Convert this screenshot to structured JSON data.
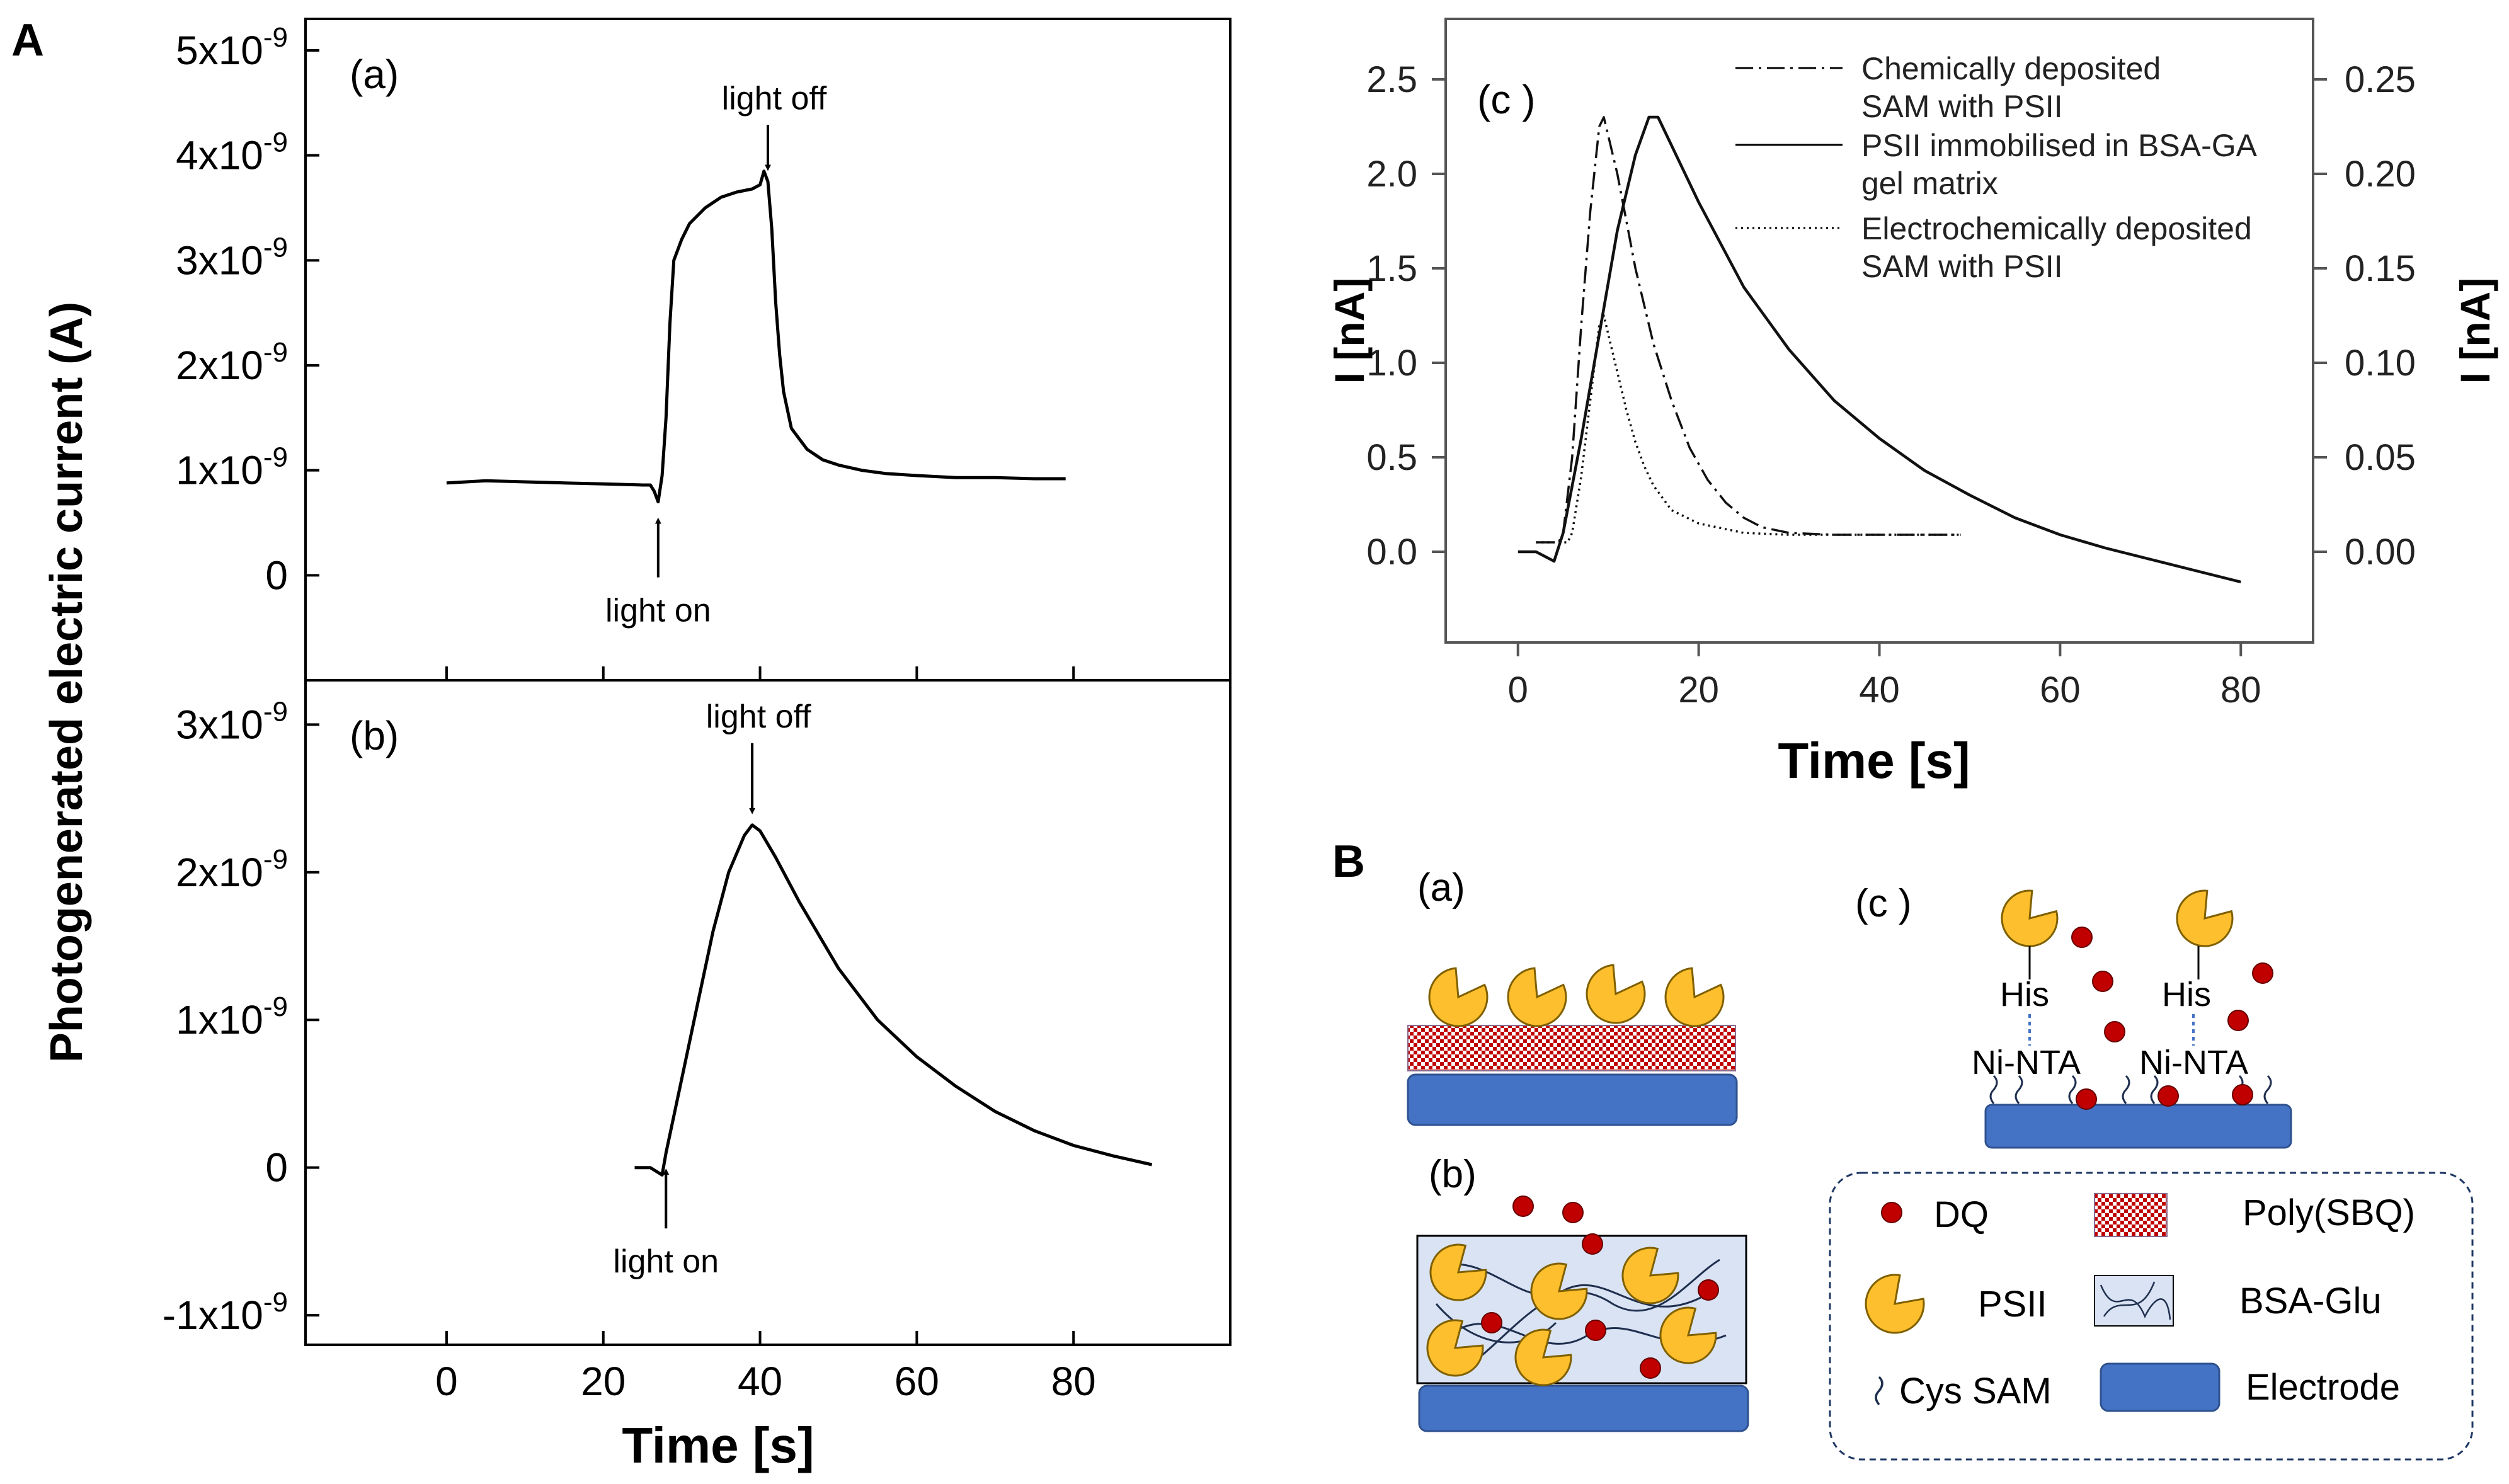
{
  "panel_letters": {
    "A": "A",
    "B": "B"
  },
  "shared_xlabel": "Time [s]",
  "chart_data": [
    {
      "id": "Aa",
      "type": "line",
      "panel_label": "(a)",
      "ylabel": "Photogenerated electric current (A)",
      "x_ticks": [
        "0",
        "20",
        "40",
        "60",
        "80"
      ],
      "xlim": [
        -18,
        100
      ],
      "ylim": [
        -1e-09,
        5.3e-09
      ],
      "y_ticks": [
        {
          "value": 0,
          "label": "0"
        },
        {
          "value": 1e-09,
          "mantissa": "1x10",
          "exp": "-9"
        },
        {
          "value": 2e-09,
          "mantissa": "2x10",
          "exp": "-9"
        },
        {
          "value": 3e-09,
          "mantissa": "3x10",
          "exp": "-9"
        },
        {
          "value": 4e-09,
          "mantissa": "4x10",
          "exp": "-9"
        },
        {
          "value": 5e-09,
          "mantissa": "5x10",
          "exp": "-9"
        }
      ],
      "annotations": [
        {
          "text": "light on",
          "x": 27,
          "arrow": "up"
        },
        {
          "text": "light off",
          "x": 41,
          "arrow": "down"
        }
      ],
      "series": [
        {
          "x": [
            0,
            5,
            10,
            15,
            20,
            25,
            26,
            26.5,
            27,
            27.5,
            28,
            28.5,
            29,
            30,
            31,
            33,
            35,
            37,
            39,
            40,
            40.5,
            41,
            41.5,
            42,
            42.5,
            43,
            44,
            46,
            48,
            50,
            53,
            56,
            60,
            65,
            70,
            75,
            79
          ],
          "y": [
            8.8e-10,
            9e-10,
            8.9e-10,
            8.8e-10,
            8.7e-10,
            8.6e-10,
            8.6e-10,
            8e-10,
            7e-10,
            9.5e-10,
            1.5e-09,
            2.4e-09,
            3e-09,
            3.2e-09,
            3.35e-09,
            3.5e-09,
            3.6e-09,
            3.65e-09,
            3.68e-09,
            3.72e-09,
            3.85e-09,
            3.75e-09,
            3.3e-09,
            2.6e-09,
            2.1e-09,
            1.75e-09,
            1.4e-09,
            1.2e-09,
            1.1e-09,
            1.05e-09,
            1e-09,
            9.7e-10,
            9.5e-10,
            9.3e-10,
            9.3e-10,
            9.2e-10,
            9.2e-10
          ]
        }
      ]
    },
    {
      "id": "Ab",
      "type": "line",
      "panel_label": "(b)",
      "ylabel": "",
      "x_ticks": [
        "0",
        "20",
        "40",
        "60",
        "80"
      ],
      "xlim": [
        -18,
        100
      ],
      "ylim": [
        -1.2e-09,
        3.3e-09
      ],
      "y_ticks": [
        {
          "value": -1e-09,
          "mantissa": "-1x10",
          "exp": "-9"
        },
        {
          "value": 0,
          "label": "0"
        },
        {
          "value": 1e-09,
          "mantissa": "1x10",
          "exp": "-9"
        },
        {
          "value": 2e-09,
          "mantissa": "2x10",
          "exp": "-9"
        },
        {
          "value": 3e-09,
          "mantissa": "3x10",
          "exp": "-9"
        }
      ],
      "annotations": [
        {
          "text": "light on",
          "x": 28,
          "arrow": "up"
        },
        {
          "text": "light off",
          "x": 39,
          "arrow": "down"
        }
      ],
      "series": [
        {
          "x": [
            24,
            26,
            27.5,
            28,
            30,
            32,
            34,
            36,
            38,
            39,
            40,
            42,
            45,
            50,
            55,
            60,
            65,
            70,
            75,
            80,
            85,
            90
          ],
          "y": [
            0,
            0,
            -5e-11,
            1e-10,
            6e-10,
            1.1e-09,
            1.6e-09,
            2e-09,
            2.25e-09,
            2.32e-09,
            2.28e-09,
            2.1e-09,
            1.8e-09,
            1.35e-09,
            1e-09,
            7.5e-10,
            5.5e-10,
            3.8e-10,
            2.5e-10,
            1.5e-10,
            8e-11,
            2e-11
          ]
        }
      ]
    },
    {
      "id": "Ac",
      "type": "line",
      "panel_label": "(c )",
      "xlabel": "Time [s]",
      "ylabel": "I [nA]",
      "y2label": "I [nA]",
      "xlim": [
        -8,
        88
      ],
      "ylim": [
        -0.48,
        2.82
      ],
      "y2lim": [
        -0.048,
        0.282
      ],
      "x_ticks": [
        0,
        20,
        40,
        60,
        80
      ],
      "y_ticks": [
        "0.0",
        "0.5",
        "1.0",
        "1.5",
        "2.0",
        "2.5"
      ],
      "y2_ticks": [
        "0.00",
        "0.05",
        "0.10",
        "0.15",
        "0.20",
        "0.25"
      ],
      "legend_position": "top-right",
      "series": [
        {
          "name": "Chemically deposited SAM with PSII",
          "style": "dashdot",
          "x": [
            2,
            4.5,
            5,
            6,
            7,
            8,
            9,
            9.5,
            10,
            11,
            12,
            13,
            15,
            17,
            19,
            21,
            23,
            25,
            27,
            30,
            35,
            40,
            45,
            49
          ],
          "y": [
            0.05,
            0.05,
            0.1,
            0.5,
            1.2,
            1.8,
            2.25,
            2.3,
            2.2,
            2.0,
            1.75,
            1.5,
            1.1,
            0.8,
            0.55,
            0.38,
            0.26,
            0.18,
            0.13,
            0.1,
            0.09,
            0.09,
            0.09,
            0.09
          ]
        },
        {
          "name": "PSII immobilised in BSA-GA gel matrix",
          "style": "solid",
          "x": [
            0,
            2,
            4,
            5,
            7,
            9,
            11,
            13,
            14.5,
            15.5,
            17,
            20,
            25,
            30,
            35,
            40,
            45,
            50,
            55,
            60,
            65,
            70,
            75,
            80
          ],
          "y": [
            0,
            0,
            -0.05,
            0.1,
            0.6,
            1.15,
            1.7,
            2.1,
            2.3,
            2.3,
            2.15,
            1.85,
            1.4,
            1.07,
            0.8,
            0.6,
            0.43,
            0.3,
            0.18,
            0.09,
            0.02,
            -0.04,
            -0.1,
            -0.16
          ]
        },
        {
          "name": "Electrochemically deposited SAM with PSII",
          "style": "dotted",
          "x": [
            2,
            5.5,
            6,
            7,
            8,
            8.5,
            9,
            9.5,
            10,
            11,
            12,
            13,
            14,
            15,
            17,
            20,
            25,
            30,
            35,
            40,
            45,
            49
          ],
          "y": [
            0.05,
            0.05,
            0.1,
            0.4,
            0.8,
            1.0,
            1.2,
            1.25,
            1.15,
            0.95,
            0.75,
            0.58,
            0.45,
            0.35,
            0.22,
            0.15,
            0.1,
            0.09,
            0.09,
            0.09,
            0.09,
            0.09
          ]
        }
      ]
    }
  ],
  "schematic": {
    "a": {
      "label": "(a)"
    },
    "b": {
      "label": "(b)"
    },
    "c": {
      "label": "(c )",
      "his_label": "His",
      "ni_nta_label": "Ni-NTA"
    },
    "legend": [
      {
        "key": "dq",
        "label": "DQ"
      },
      {
        "key": "poly_sbq",
        "label": "Poly(SBQ)"
      },
      {
        "key": "psii",
        "label": "PSII"
      },
      {
        "key": "bsa_glu",
        "label": "BSA-Glu"
      },
      {
        "key": "cys_sam",
        "label": "Cys SAM"
      },
      {
        "key": "electrode",
        "label": "Electrode"
      }
    ],
    "colors": {
      "psii": "#fdbf2d",
      "electrode": "#4472c4",
      "dq": "#c00000",
      "gel": "#dae3f3",
      "poly": "#c00000",
      "linker": "#4472c4"
    }
  }
}
